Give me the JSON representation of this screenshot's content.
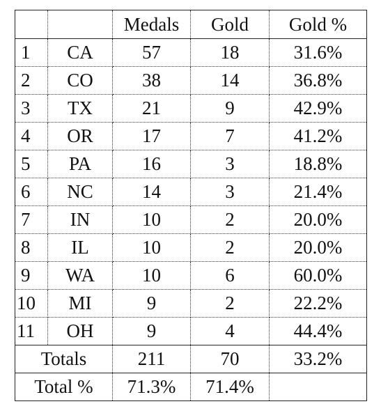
{
  "header": {
    "rank": "",
    "state": "",
    "medals": "Medals",
    "gold": "Gold",
    "gold_pct": "Gold %"
  },
  "rows": [
    {
      "rank": "1",
      "state": "CA",
      "medals": "57",
      "gold": "18",
      "gold_pct": "31.6%"
    },
    {
      "rank": "2",
      "state": "CO",
      "medals": "38",
      "gold": "14",
      "gold_pct": "36.8%"
    },
    {
      "rank": "3",
      "state": "TX",
      "medals": "21",
      "gold": "9",
      "gold_pct": "42.9%"
    },
    {
      "rank": "4",
      "state": "OR",
      "medals": "17",
      "gold": "7",
      "gold_pct": "41.2%"
    },
    {
      "rank": "5",
      "state": "PA",
      "medals": "16",
      "gold": "3",
      "gold_pct": "18.8%"
    },
    {
      "rank": "6",
      "state": "NC",
      "medals": "14",
      "gold": "3",
      "gold_pct": "21.4%"
    },
    {
      "rank": "7",
      "state": "IN",
      "medals": "10",
      "gold": "2",
      "gold_pct": "20.0%"
    },
    {
      "rank": "8",
      "state": "IL",
      "medals": "10",
      "gold": "2",
      "gold_pct": "20.0%"
    },
    {
      "rank": "9",
      "state": "WA",
      "medals": "10",
      "gold": "6",
      "gold_pct": "60.0%"
    },
    {
      "rank": "10",
      "state": "MI",
      "medals": "9",
      "gold": "2",
      "gold_pct": "22.2%"
    },
    {
      "rank": "11",
      "state": "OH",
      "medals": "9",
      "gold": "4",
      "gold_pct": "44.4%"
    }
  ],
  "totals": {
    "label": "Totals",
    "medals": "211",
    "gold": "70",
    "gold_pct": "33.2%"
  },
  "total_pct": {
    "label": "Total %",
    "medals": "71.3%",
    "gold": "71.4%",
    "gold_pct": ""
  }
}
